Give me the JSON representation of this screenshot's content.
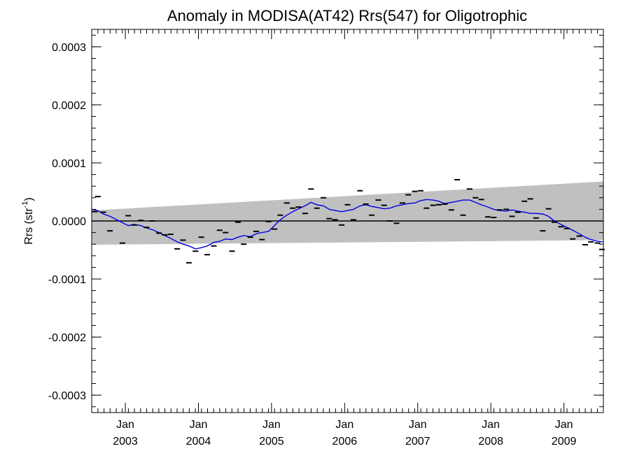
{
  "chart_data": {
    "type": "line",
    "title": "Anomaly in MODISA(AT42) Rrs(547) for Oligotrophic",
    "ylabel_main": "Rrs (str",
    "ylabel_sup": "-1",
    "ylabel_close": ")",
    "ylim": [
      -0.00033,
      0.00033
    ],
    "xlim": [
      2002.54,
      2009.54
    ],
    "yticks": [
      {
        "value": 0.0003,
        "label": "0.0003"
      },
      {
        "value": 0.0002,
        "label": "0.0002"
      },
      {
        "value": 0.0001,
        "label": "0.0001"
      },
      {
        "value": 0.0,
        "label": "0.0000"
      },
      {
        "value": -0.0001,
        "label": "-0.0001"
      },
      {
        "value": -0.0002,
        "label": "-0.0002"
      },
      {
        "value": -0.0003,
        "label": "-0.0003"
      }
    ],
    "xticks": [
      {
        "value": 2003.0,
        "month": "Jan",
        "year": "2003"
      },
      {
        "value": 2004.0,
        "month": "Jan",
        "year": "2004"
      },
      {
        "value": 2005.0,
        "month": "Jan",
        "year": "2005"
      },
      {
        "value": 2006.0,
        "month": "Jan",
        "year": "2006"
      },
      {
        "value": 2007.0,
        "month": "Jan",
        "year": "2007"
      },
      {
        "value": 2008.0,
        "month": "Jan",
        "year": "2008"
      },
      {
        "value": 2009.0,
        "month": "Jan",
        "year": "2009"
      }
    ],
    "band": {
      "upper": [
        [
          2002.54,
          1.8e-05
        ],
        [
          2009.54,
          6.8e-05
        ]
      ],
      "lower": [
        [
          2002.54,
          -4.1e-05
        ],
        [
          2009.54,
          -3.3e-05
        ]
      ],
      "color": "#c0c0c0"
    },
    "zero_line": 0.0,
    "series": [
      {
        "kind": "points",
        "color": "#000000",
        "x": [
          2002.58,
          2002.625,
          2002.7,
          2002.79,
          2002.96,
          2003.04,
          2003.12,
          2003.21,
          2003.29,
          2003.37,
          2003.46,
          2003.54,
          2003.62,
          2003.71,
          2003.79,
          2003.87,
          2003.96,
          2004.04,
          2004.12,
          2004.21,
          2004.29,
          2004.37,
          2004.46,
          2004.54,
          2004.62,
          2004.71,
          2004.79,
          2004.87,
          2004.96,
          2005.04,
          2005.12,
          2005.21,
          2005.29,
          2005.37,
          2005.46,
          2005.54,
          2005.62,
          2005.71,
          2005.79,
          2005.87,
          2005.96,
          2006.04,
          2006.12,
          2006.21,
          2006.29,
          2006.37,
          2006.46,
          2006.54,
          2006.62,
          2006.71,
          2006.79,
          2006.87,
          2006.96,
          2007.04,
          2007.12,
          2007.21,
          2007.29,
          2007.37,
          2007.46,
          2007.54,
          2007.62,
          2007.71,
          2007.79,
          2007.87,
          2007.96,
          2008.04,
          2008.12,
          2008.21,
          2008.29,
          2008.37,
          2008.46,
          2008.54,
          2008.62,
          2008.71,
          2008.79,
          2008.87,
          2008.96,
          2009.04,
          2009.12,
          2009.21,
          2009.29,
          2009.37,
          2009.46,
          2009.52
        ],
        "y": [
          1.6e-05,
          4.2e-05,
          1.5e-05,
          -1.7e-05,
          -3.8e-05,
          9e-06,
          -7e-06,
          1e-06,
          -1.1e-05,
          0.0,
          -2.1e-05,
          -2.4e-05,
          -2.3e-05,
          -4.8e-05,
          -3.3e-05,
          -7.2e-05,
          -5.2e-05,
          -2.8e-05,
          -5.8e-05,
          -4.3e-05,
          -1.6e-05,
          -2e-05,
          -5.2e-05,
          -2e-06,
          -4e-05,
          -2.8e-05,
          -1.8e-05,
          -3.2e-05,
          -1e-06,
          -1.4e-05,
          1e-05,
          3.1e-05,
          2.2e-05,
          2.4e-05,
          1.3e-05,
          5.5e-05,
          2.2e-05,
          4e-05,
          4e-06,
          2e-06,
          -7e-06,
          2.8e-05,
          2e-06,
          5.2e-05,
          2.9e-05,
          1e-05,
          3.6e-05,
          2.7e-05,
          0.0,
          -4e-06,
          3.1e-05,
          4.5e-05,
          5.1e-05,
          5.2e-05,
          2.2e-05,
          2.7e-05,
          2.8e-05,
          2.9e-05,
          1.9e-05,
          7.1e-05,
          1e-05,
          5.5e-05,
          4e-05,
          3.7e-05,
          7e-06,
          6e-06,
          1.9e-05,
          2e-05,
          8e-06,
          1.5e-05,
          3.4e-05,
          3.8e-05,
          5e-06,
          -1.7e-05,
          2.1e-05,
          -2e-06,
          -1e-05,
          -1.3e-05,
          -3.1e-05,
          -2.6e-05,
          -4.1e-05,
          -3.6e-05,
          -3.8e-05,
          -4.9e-05
        ]
      },
      {
        "kind": "line",
        "color": "#0000e6",
        "x": [
          2002.54,
          2002.62,
          2002.7,
          2002.79,
          2002.87,
          2002.96,
          2003.04,
          2003.12,
          2003.21,
          2003.29,
          2003.37,
          2003.46,
          2003.54,
          2003.62,
          2003.71,
          2003.79,
          2003.87,
          2003.96,
          2004.04,
          2004.12,
          2004.21,
          2004.29,
          2004.37,
          2004.46,
          2004.54,
          2004.62,
          2004.71,
          2004.79,
          2004.87,
          2004.96,
          2005.04,
          2005.12,
          2005.21,
          2005.29,
          2005.37,
          2005.46,
          2005.54,
          2005.62,
          2005.71,
          2005.79,
          2005.87,
          2005.96,
          2006.04,
          2006.12,
          2006.21,
          2006.29,
          2006.37,
          2006.46,
          2006.54,
          2006.62,
          2006.71,
          2006.79,
          2006.87,
          2006.96,
          2007.04,
          2007.12,
          2007.21,
          2007.29,
          2007.37,
          2007.46,
          2007.54,
          2007.62,
          2007.71,
          2007.79,
          2007.87,
          2007.96,
          2008.04,
          2008.12,
          2008.21,
          2008.29,
          2008.37,
          2008.46,
          2008.54,
          2008.62,
          2008.71,
          2008.79,
          2008.87,
          2008.96,
          2009.04,
          2009.12,
          2009.21,
          2009.29,
          2009.37,
          2009.46,
          2009.54
        ],
        "y": [
          2e-05,
          1.8e-05,
          1.2e-05,
          8e-06,
          3e-06,
          -3e-06,
          -8e-06,
          -6e-06,
          -8e-06,
          -1.2e-05,
          -1.5e-05,
          -2e-05,
          -2.5e-05,
          -3e-05,
          -3.6e-05,
          -4e-05,
          -4.3e-05,
          -4.8e-05,
          -4.6e-05,
          -4.3e-05,
          -3.7e-05,
          -3.5e-05,
          -3.1e-05,
          -3.2e-05,
          -2.8e-05,
          -2.5e-05,
          -2.7e-05,
          -2.2e-05,
          -2e-05,
          -1.8e-05,
          -8e-06,
          2e-06,
          1e-05,
          1.6e-05,
          2.1e-05,
          2.6e-05,
          3.2e-05,
          2.8e-05,
          2.6e-05,
          2e-05,
          1.8e-05,
          1.6e-05,
          1.8e-05,
          2e-05,
          2.6e-05,
          2.8e-05,
          2.5e-05,
          2.3e-05,
          2.1e-05,
          2.2e-05,
          2.6e-05,
          2.8e-05,
          3e-05,
          3.1e-05,
          3.5e-05,
          3.7e-05,
          3.6e-05,
          3.4e-05,
          3e-05,
          3.2e-05,
          3.4e-05,
          3.6e-05,
          3.6e-05,
          3.2e-05,
          2.8e-05,
          2.4e-05,
          2e-05,
          1.8e-05,
          1.7e-05,
          1.9e-05,
          1.7e-05,
          1.5e-05,
          1.3e-05,
          1.3e-05,
          1.2e-05,
          8e-06,
          0.0,
          -6e-06,
          -1.1e-05,
          -1.6e-05,
          -2.2e-05,
          -2.8e-05,
          -3.2e-05,
          -3.5e-05,
          -3.6e-05
        ]
      }
    ]
  }
}
